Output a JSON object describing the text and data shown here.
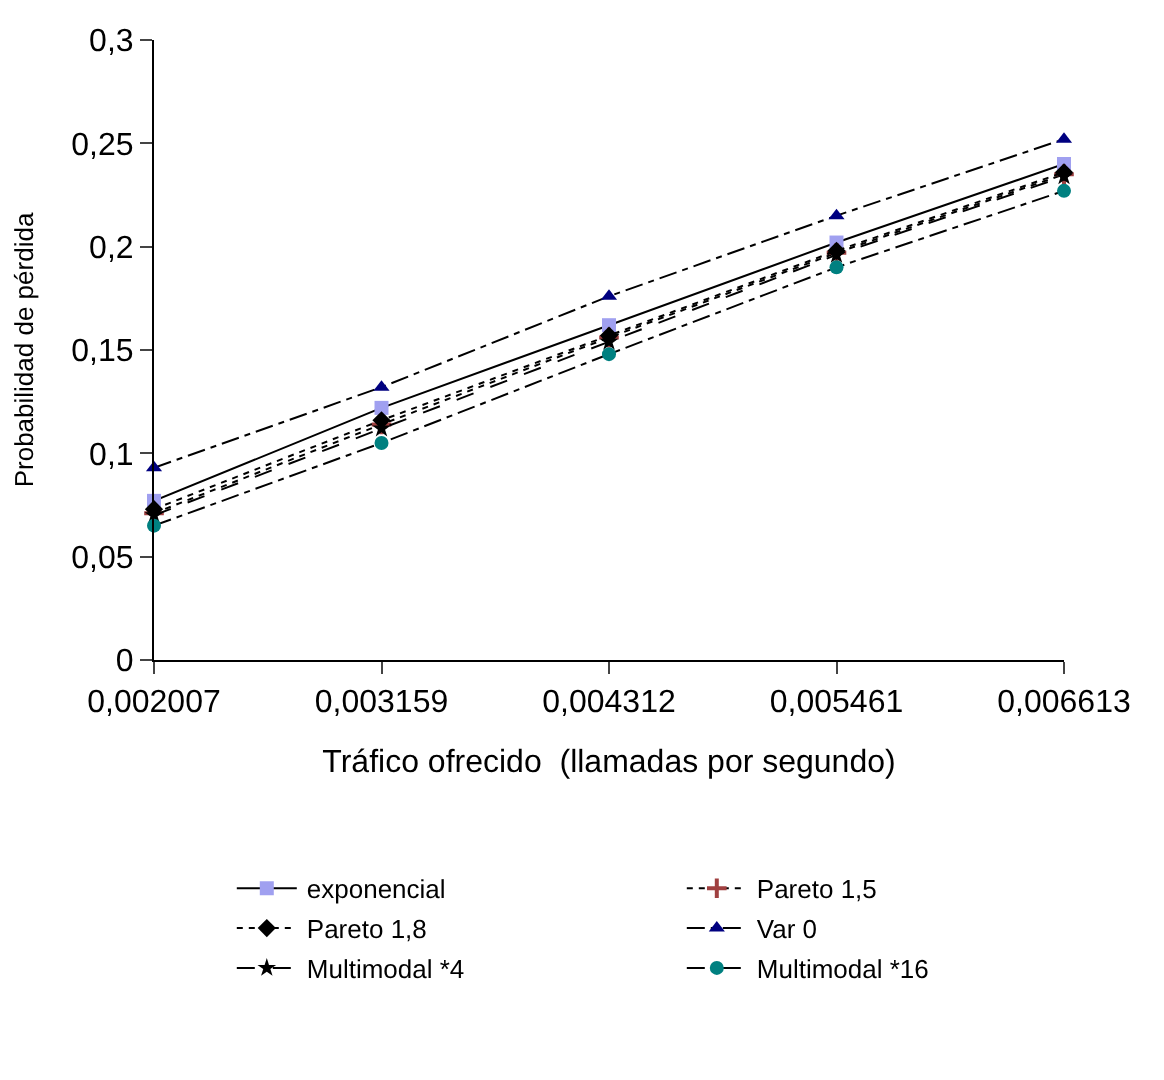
{
  "chart_data": {
    "type": "line",
    "xlabel": "Tráfico ofrecido  (llamadas por segundo)",
    "ylabel": "Probabilidad de pérdida",
    "categories": [
      "0,002007",
      "0,003159",
      "0,004312",
      "0,005461",
      "0,006613"
    ],
    "ylim": [
      0,
      0.3
    ],
    "yticks": [
      0,
      {
        "value": 0.05,
        "label": "0,05"
      },
      {
        "value": 0.1,
        "label": "0,1"
      },
      {
        "value": 0.15,
        "label": "0,15"
      },
      {
        "value": 0.2,
        "label": "0,2"
      },
      {
        "value": 0.25,
        "label": "0,25"
      },
      {
        "value": 0.3,
        "label": "0,3"
      }
    ],
    "legend": "bottom",
    "series": [
      {
        "name": "exponencial",
        "color": "#a0a0f0",
        "marker": "square",
        "line_style": "solid",
        "values": [
          0.077,
          0.122,
          0.162,
          0.202,
          0.24
        ]
      },
      {
        "name": "Pareto 1,5",
        "color": "#a04040",
        "marker": "cross",
        "line_style": "dotted",
        "values": [
          0.071,
          0.114,
          0.156,
          0.197,
          0.235
        ]
      },
      {
        "name": "Pareto 1,8",
        "color": "#000000",
        "marker": "diamond",
        "line_style": "dotted",
        "values": [
          0.073,
          0.116,
          0.157,
          0.198,
          0.236
        ]
      },
      {
        "name": "Var 0",
        "color": "#000080",
        "marker": "triangle",
        "line_style": "dashdot",
        "values": [
          0.093,
          0.132,
          0.176,
          0.215,
          0.252
        ]
      },
      {
        "name": "Multimodal *4",
        "color": "#000000",
        "marker": "star",
        "line_style": "dashed",
        "values": [
          0.07,
          0.112,
          0.154,
          0.196,
          0.234
        ]
      },
      {
        "name": "Multimodal *16",
        "color": "#008080",
        "marker": "circle",
        "line_style": "dashdot",
        "values": [
          0.065,
          0.105,
          0.148,
          0.19,
          0.227
        ]
      }
    ]
  }
}
